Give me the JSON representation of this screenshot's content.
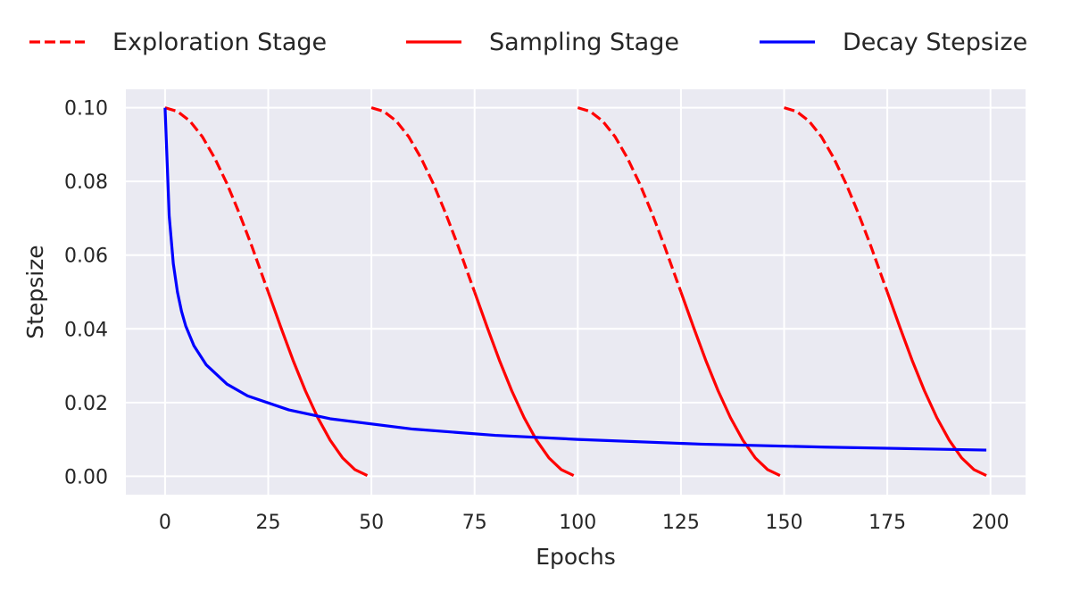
{
  "chart_data": {
    "type": "line",
    "title": "",
    "xlabel": "Epochs",
    "ylabel": "Stepsize",
    "xlim": [
      -9.5,
      208.5
    ],
    "ylim": [
      -0.005,
      0.105
    ],
    "xticks": [
      0,
      25,
      50,
      75,
      100,
      125,
      150,
      175,
      200
    ],
    "xtick_labels": [
      "0",
      "25",
      "50",
      "75",
      "100",
      "125",
      "150",
      "175",
      "200"
    ],
    "yticks": [
      0.0,
      0.02,
      0.04,
      0.06,
      0.08,
      0.1
    ],
    "ytick_labels": [
      "0.00",
      "0.02",
      "0.04",
      "0.06",
      "0.08",
      "0.10"
    ],
    "grid": true,
    "legend_position": "top",
    "legend": [
      {
        "label": "Exploration Stage",
        "style": "dashed",
        "color": "#ff0000"
      },
      {
        "label": "Sampling Stage",
        "style": "solid",
        "color": "#ff0000"
      },
      {
        "label": "Decay Stepsize",
        "style": "solid",
        "color": "#0000ff"
      }
    ],
    "series": [
      {
        "name": "Exploration Stage",
        "style": "dashed",
        "color": "#ff0000",
        "segments": [
          {
            "x": [
              0,
              3,
              6,
              9,
              12,
              15,
              18,
              21,
              24,
              25
            ],
            "y": [
              0.1,
              0.099,
              0.0964,
              0.0922,
              0.0864,
              0.0794,
              0.0713,
              0.0625,
              0.0531,
              0.05
            ]
          },
          {
            "x": [
              50,
              53,
              56,
              59,
              62,
              65,
              68,
              71,
              74,
              75
            ],
            "y": [
              0.1,
              0.099,
              0.0964,
              0.0922,
              0.0864,
              0.0794,
              0.0713,
              0.0625,
              0.0531,
              0.05
            ]
          },
          {
            "x": [
              100,
              103,
              106,
              109,
              112,
              115,
              118,
              121,
              124,
              125
            ],
            "y": [
              0.1,
              0.099,
              0.0964,
              0.0922,
              0.0864,
              0.0794,
              0.0713,
              0.0625,
              0.0531,
              0.05
            ]
          },
          {
            "x": [
              150,
              153,
              156,
              159,
              162,
              165,
              168,
              171,
              174,
              175
            ],
            "y": [
              0.1,
              0.099,
              0.0964,
              0.0922,
              0.0864,
              0.0794,
              0.0713,
              0.0625,
              0.0531,
              0.05
            ]
          }
        ]
      },
      {
        "name": "Sampling Stage",
        "style": "solid",
        "color": "#ff0000",
        "segments": [
          {
            "x": [
              25,
              28,
              31,
              34,
              37,
              40,
              43,
              46,
              49
            ],
            "y": [
              0.05,
              0.0406,
              0.0315,
              0.0232,
              0.0159,
              0.0098,
              0.005,
              0.0018,
              0.0002
            ]
          },
          {
            "x": [
              75,
              78,
              81,
              84,
              87,
              90,
              93,
              96,
              99
            ],
            "y": [
              0.05,
              0.0406,
              0.0315,
              0.0232,
              0.0159,
              0.0098,
              0.005,
              0.0018,
              0.0002
            ]
          },
          {
            "x": [
              125,
              128,
              131,
              134,
              137,
              140,
              143,
              146,
              149
            ],
            "y": [
              0.05,
              0.0406,
              0.0315,
              0.0232,
              0.0159,
              0.0098,
              0.005,
              0.0018,
              0.0002
            ]
          },
          {
            "x": [
              175,
              178,
              181,
              184,
              187,
              190,
              193,
              196,
              199
            ],
            "y": [
              0.05,
              0.0406,
              0.0315,
              0.0232,
              0.0159,
              0.0098,
              0.005,
              0.0018,
              0.0002
            ]
          }
        ]
      },
      {
        "name": "Decay Stepsize",
        "style": "solid",
        "color": "#0000ff",
        "segments": [
          {
            "x": [
              0,
              1,
              2,
              3,
              4,
              5,
              7,
              10,
              15,
              20,
              30,
              40,
              60,
              80,
              100,
              130,
              160,
              199
            ],
            "y": [
              0.1,
              0.0707,
              0.0577,
              0.05,
              0.0447,
              0.0408,
              0.0354,
              0.0302,
              0.025,
              0.0218,
              0.018,
              0.0156,
              0.0128,
              0.0111,
              0.01,
              0.0087,
              0.0079,
              0.0071
            ]
          }
        ]
      }
    ]
  }
}
